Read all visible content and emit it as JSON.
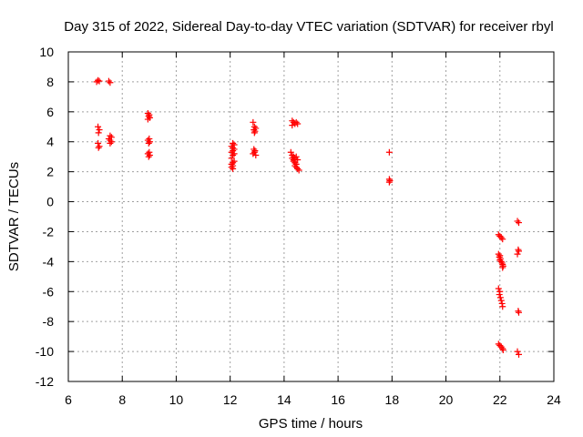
{
  "chart_data": {
    "type": "scatter",
    "title": "Day 315 of 2022, Sidereal Day-to-day VTEC variation (SDTVAR) for receiver rbyl",
    "xlabel": "GPS time / hours",
    "ylabel": "SDTVAR / TECUs",
    "xlim": [
      6,
      24
    ],
    "ylim": [
      -12,
      10
    ],
    "xticks": [
      6,
      8,
      10,
      12,
      14,
      16,
      18,
      20,
      22,
      24
    ],
    "yticks": [
      10,
      8,
      6,
      4,
      2,
      0,
      -2,
      -4,
      -6,
      -8,
      -10,
      -12
    ],
    "grid": true,
    "marker": "+",
    "color": "#ff0000",
    "series": [
      {
        "name": "SDTVAR",
        "points": [
          [
            7.05,
            8.0
          ],
          [
            7.1,
            8.1
          ],
          [
            7.15,
            8.05
          ],
          [
            7.1,
            5.0
          ],
          [
            7.15,
            4.8
          ],
          [
            7.12,
            4.6
          ],
          [
            7.1,
            3.9
          ],
          [
            7.15,
            3.7
          ],
          [
            7.12,
            3.6
          ],
          [
            7.5,
            8.05
          ],
          [
            7.55,
            7.95
          ],
          [
            7.55,
            4.4
          ],
          [
            7.6,
            4.3
          ],
          [
            7.5,
            4.2
          ],
          [
            7.55,
            4.1
          ],
          [
            7.6,
            4.0
          ],
          [
            7.55,
            3.9
          ],
          [
            8.95,
            5.9
          ],
          [
            9.0,
            5.8
          ],
          [
            8.98,
            5.7
          ],
          [
            9.02,
            5.6
          ],
          [
            8.95,
            5.5
          ],
          [
            9.0,
            4.2
          ],
          [
            8.95,
            4.1
          ],
          [
            9.02,
            4.0
          ],
          [
            8.98,
            3.9
          ],
          [
            9.0,
            3.3
          ],
          [
            8.95,
            3.2
          ],
          [
            9.02,
            3.1
          ],
          [
            8.98,
            3.0
          ],
          [
            12.1,
            3.9
          ],
          [
            12.15,
            3.8
          ],
          [
            12.05,
            3.7
          ],
          [
            12.1,
            3.6
          ],
          [
            12.15,
            3.5
          ],
          [
            12.1,
            3.4
          ],
          [
            12.05,
            3.3
          ],
          [
            12.15,
            3.2
          ],
          [
            12.1,
            3.1
          ],
          [
            12.05,
            2.9
          ],
          [
            12.15,
            2.7
          ],
          [
            12.1,
            2.6
          ],
          [
            12.05,
            2.5
          ],
          [
            12.1,
            2.4
          ],
          [
            12.05,
            2.3
          ],
          [
            12.1,
            2.2
          ],
          [
            12.85,
            5.3
          ],
          [
            12.9,
            5.0
          ],
          [
            12.95,
            4.9
          ],
          [
            12.88,
            4.8
          ],
          [
            12.92,
            4.7
          ],
          [
            12.9,
            4.6
          ],
          [
            12.88,
            3.5
          ],
          [
            12.92,
            3.4
          ],
          [
            12.9,
            3.3
          ],
          [
            12.85,
            3.2
          ],
          [
            12.95,
            3.1
          ],
          [
            14.3,
            5.4
          ],
          [
            14.35,
            5.3
          ],
          [
            14.4,
            5.2
          ],
          [
            14.45,
            5.3
          ],
          [
            14.5,
            5.2
          ],
          [
            14.3,
            5.1
          ],
          [
            14.25,
            3.3
          ],
          [
            14.3,
            3.1
          ],
          [
            14.35,
            3.0
          ],
          [
            14.3,
            2.9
          ],
          [
            14.35,
            2.8
          ],
          [
            14.4,
            2.9
          ],
          [
            14.45,
            3.0
          ],
          [
            14.5,
            2.8
          ],
          [
            14.35,
            2.7
          ],
          [
            14.4,
            2.6
          ],
          [
            14.45,
            2.5
          ],
          [
            14.4,
            2.4
          ],
          [
            14.45,
            2.3
          ],
          [
            14.5,
            2.2
          ],
          [
            14.55,
            2.1
          ],
          [
            17.9,
            3.3
          ],
          [
            17.9,
            1.5
          ],
          [
            17.92,
            1.4
          ],
          [
            17.9,
            1.3
          ],
          [
            21.95,
            -2.2
          ],
          [
            22.0,
            -2.3
          ],
          [
            22.05,
            -2.4
          ],
          [
            22.1,
            -2.5
          ],
          [
            21.95,
            -3.5
          ],
          [
            22.0,
            -3.6
          ],
          [
            21.98,
            -3.7
          ],
          [
            22.02,
            -3.8
          ],
          [
            22.0,
            -3.9
          ],
          [
            22.05,
            -4.0
          ],
          [
            22.08,
            -4.1
          ],
          [
            22.1,
            -4.2
          ],
          [
            22.12,
            -4.3
          ],
          [
            22.1,
            -4.4
          ],
          [
            21.95,
            -5.8
          ],
          [
            22.0,
            -6.0
          ],
          [
            21.98,
            -6.2
          ],
          [
            22.02,
            -6.4
          ],
          [
            22.05,
            -6.6
          ],
          [
            22.08,
            -6.8
          ],
          [
            22.1,
            -7.0
          ],
          [
            21.95,
            -9.5
          ],
          [
            22.0,
            -9.6
          ],
          [
            22.05,
            -9.7
          ],
          [
            22.1,
            -9.8
          ],
          [
            22.12,
            -9.9
          ],
          [
            22.65,
            -1.3
          ],
          [
            22.7,
            -1.4
          ],
          [
            22.68,
            -3.2
          ],
          [
            22.7,
            -3.3
          ],
          [
            22.65,
            -3.5
          ],
          [
            22.68,
            -7.3
          ],
          [
            22.7,
            -7.4
          ],
          [
            22.65,
            -10.0
          ],
          [
            22.7,
            -10.2
          ]
        ]
      }
    ]
  }
}
